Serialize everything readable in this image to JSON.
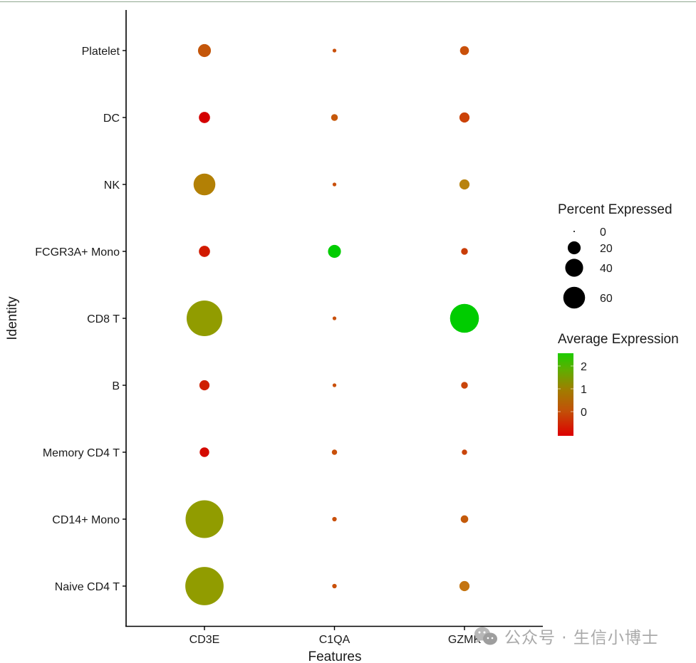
{
  "chart_data": {
    "type": "dotplot",
    "title": "",
    "xlabel": "Features",
    "ylabel": "Identity",
    "features": [
      "CD3E",
      "C1QA",
      "GZMK"
    ],
    "identities": [
      "Platelet",
      "DC",
      "NK",
      "FCGR3A+ Mono",
      "CD8 T",
      "B",
      "Memory CD4 T",
      "CD14+ Mono",
      "Naive CD4 T"
    ],
    "points": [
      {
        "identity": "Platelet",
        "feature": "CD3E",
        "pct_exp": 7,
        "avg_exp": -0.2,
        "color": "#c4560a"
      },
      {
        "identity": "Platelet",
        "feature": "C1QA",
        "pct_exp": 0.3,
        "avg_exp": -0.3,
        "color": "#c9500a"
      },
      {
        "identity": "Platelet",
        "feature": "GZMK",
        "pct_exp": 3,
        "avg_exp": -0.3,
        "color": "#c9500a"
      },
      {
        "identity": "DC",
        "feature": "CD3E",
        "pct_exp": 5,
        "avg_exp": -1.0,
        "color": "#d40000"
      },
      {
        "identity": "DC",
        "feature": "C1QA",
        "pct_exp": 1.5,
        "avg_exp": -0.3,
        "color": "#c6580a"
      },
      {
        "identity": "DC",
        "feature": "GZMK",
        "pct_exp": 4,
        "avg_exp": -0.5,
        "color": "#cb4208"
      },
      {
        "identity": "NK",
        "feature": "CD3E",
        "pct_exp": 22,
        "avg_exp": 0.3,
        "color": "#b38005"
      },
      {
        "identity": "NK",
        "feature": "C1QA",
        "pct_exp": 0.3,
        "avg_exp": -0.3,
        "color": "#c9500a"
      },
      {
        "identity": "NK",
        "feature": "GZMK",
        "pct_exp": 4,
        "avg_exp": 0.2,
        "color": "#b8830e"
      },
      {
        "identity": "FCGR3A+ Mono",
        "feature": "CD3E",
        "pct_exp": 5,
        "avg_exp": -0.9,
        "color": "#d11a00"
      },
      {
        "identity": "FCGR3A+ Mono",
        "feature": "C1QA",
        "pct_exp": 7,
        "avg_exp": 2.5,
        "color": "#00cc00"
      },
      {
        "identity": "FCGR3A+ Mono",
        "feature": "GZMK",
        "pct_exp": 1.5,
        "avg_exp": -0.7,
        "color": "#c93d08"
      },
      {
        "identity": "CD8 T",
        "feature": "CD3E",
        "pct_exp": 62,
        "avg_exp": 1.1,
        "color": "#919c00"
      },
      {
        "identity": "CD8 T",
        "feature": "C1QA",
        "pct_exp": 0.3,
        "avg_exp": -0.4,
        "color": "#c9500a"
      },
      {
        "identity": "CD8 T",
        "feature": "GZMK",
        "pct_exp": 40,
        "avg_exp": 2.5,
        "color": "#00cc00"
      },
      {
        "identity": "B",
        "feature": "CD3E",
        "pct_exp": 4,
        "avg_exp": -0.9,
        "color": "#cf2000"
      },
      {
        "identity": "B",
        "feature": "C1QA",
        "pct_exp": 0.3,
        "avg_exp": -0.3,
        "color": "#c9500a"
      },
      {
        "identity": "B",
        "feature": "GZMK",
        "pct_exp": 1.5,
        "avg_exp": -0.6,
        "color": "#c9450a"
      },
      {
        "identity": "Memory CD4 T",
        "feature": "CD3E",
        "pct_exp": 3.5,
        "avg_exp": -1.0,
        "color": "#d40a00"
      },
      {
        "identity": "Memory CD4 T",
        "feature": "C1QA",
        "pct_exp": 0.8,
        "avg_exp": -0.3,
        "color": "#c9500a"
      },
      {
        "identity": "Memory CD4 T",
        "feature": "GZMK",
        "pct_exp": 0.8,
        "avg_exp": -0.5,
        "color": "#c9450a"
      },
      {
        "identity": "CD14+ Mono",
        "feature": "CD3E",
        "pct_exp": 70,
        "avg_exp": 1.1,
        "color": "#919c00"
      },
      {
        "identity": "CD14+ Mono",
        "feature": "C1QA",
        "pct_exp": 0.5,
        "avg_exp": -0.3,
        "color": "#c9500a"
      },
      {
        "identity": "CD14+ Mono",
        "feature": "GZMK",
        "pct_exp": 2,
        "avg_exp": -0.3,
        "color": "#c45a0a"
      },
      {
        "identity": "Naive CD4 T",
        "feature": "CD3E",
        "pct_exp": 72,
        "avg_exp": 1.1,
        "color": "#919c00"
      },
      {
        "identity": "Naive CD4 T",
        "feature": "C1QA",
        "pct_exp": 0.5,
        "avg_exp": -0.3,
        "color": "#c9500a"
      },
      {
        "identity": "Naive CD4 T",
        "feature": "GZMK",
        "pct_exp": 4,
        "avg_exp": 0.0,
        "color": "#c47410"
      }
    ],
    "size_legend": {
      "title": "Percent Expressed",
      "breaks": [
        0,
        20,
        40,
        60
      ]
    },
    "color_legend": {
      "title": "Average Expression",
      "breaks": [
        2,
        1,
        0
      ],
      "range": [
        -1.06,
        2.56
      ],
      "low_color": "#dd0000",
      "mid_color": "#a07a00",
      "high_color": "#22cc00"
    },
    "layout": {
      "grid": false,
      "legend_position": "right"
    }
  },
  "watermark": {
    "text": "公众号 · 生信小博士"
  }
}
